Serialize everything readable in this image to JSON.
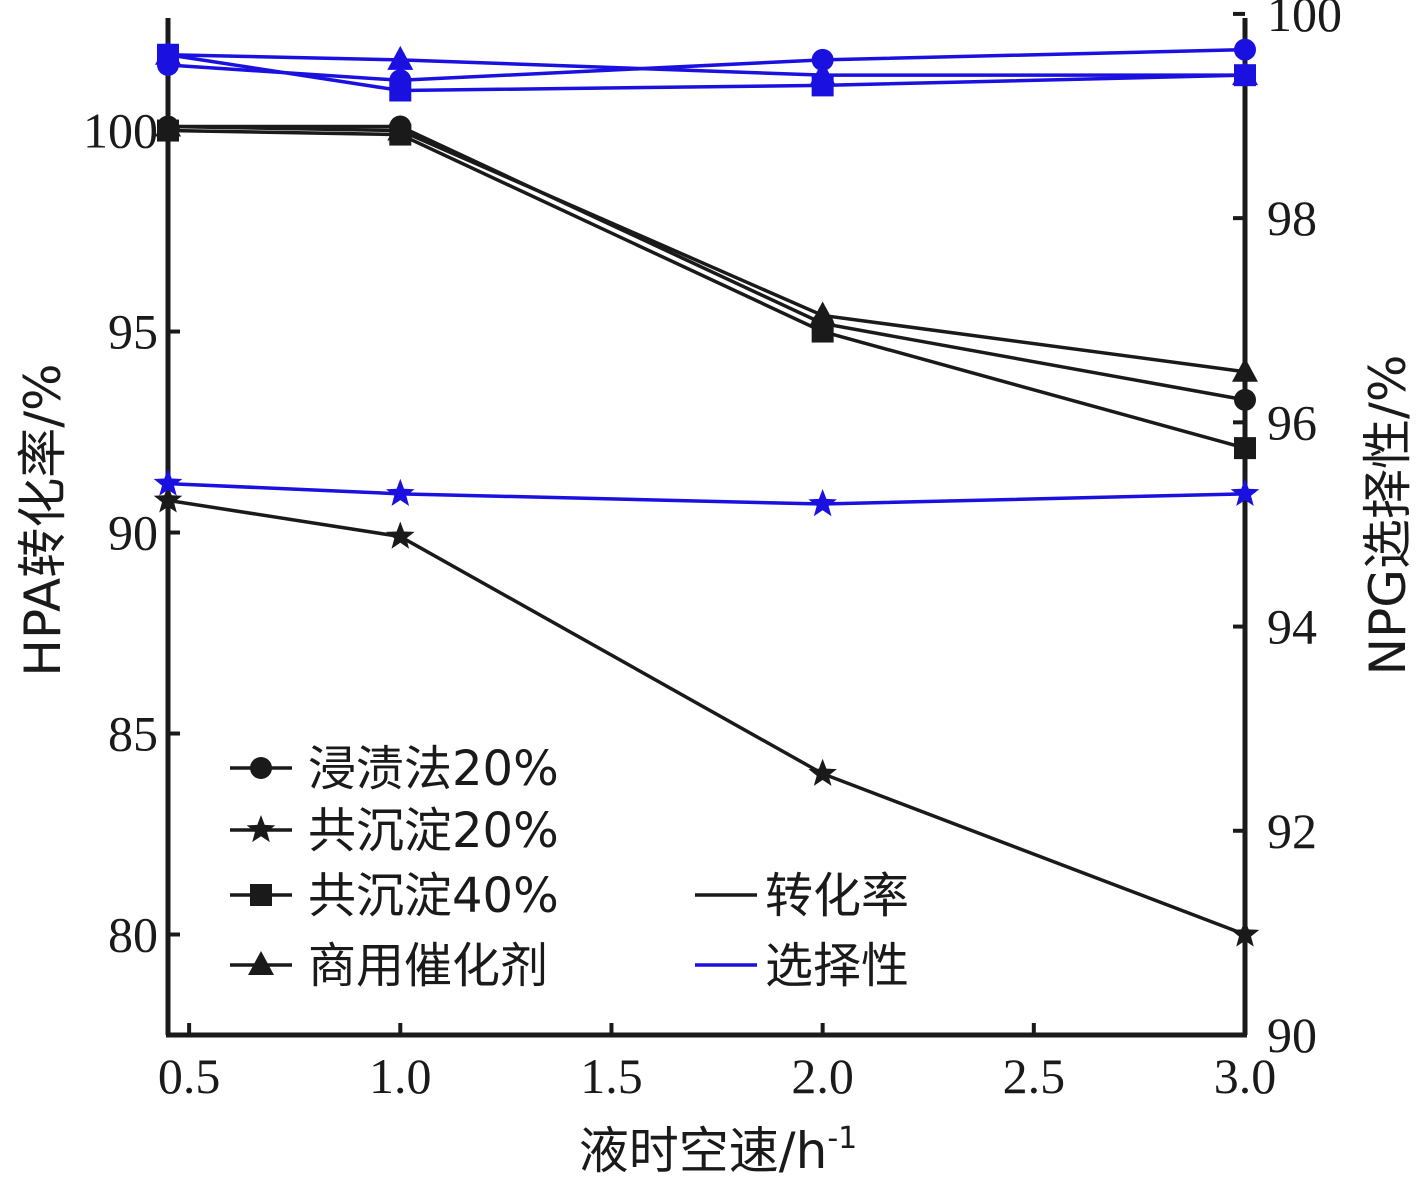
{
  "chart_data": {
    "type": "line",
    "xlabel": "液时空速/h",
    "xlabel_sup": "-1",
    "ylabel_left": "HPA转化率/%",
    "ylabel_right": "NPG选择性/%",
    "x_ticks": [
      "0.5",
      "1.0",
      "1.5",
      "2.0",
      "2.5",
      "3.0"
    ],
    "y_left_ticks": [
      "80",
      "85",
      "90",
      "95",
      "100"
    ],
    "y_right_ticks": [
      "90",
      "92",
      "94",
      "96",
      "98",
      "100"
    ],
    "xlim": [
      0.45,
      3.0
    ],
    "ylim_left": [
      77.5,
      102.8
    ],
    "ylim_right": [
      90,
      99.96
    ],
    "x": [
      0.45,
      1.0,
      2.0,
      3.0
    ],
    "grid": false,
    "legend_position": "bottom-left",
    "colors": {
      "conversion": "#1a1a1a",
      "selectivity": "#1a10e0"
    },
    "conversion_series": [
      {
        "name": "浸渍法20%",
        "marker": "circle",
        "axis": "left",
        "values": [
          100.1,
          100.1,
          95.2,
          93.3
        ]
      },
      {
        "name": "共沉淀20%",
        "marker": "star",
        "axis": "left",
        "values": [
          90.8,
          89.9,
          84.0,
          80.0
        ]
      },
      {
        "name": "共沉淀40%",
        "marker": "square",
        "axis": "left",
        "values": [
          100.0,
          99.9,
          95.0,
          92.1
        ]
      },
      {
        "name": "商用催化剂",
        "marker": "triangle",
        "axis": "left",
        "values": [
          100.1,
          100.0,
          95.4,
          94.0
        ]
      }
    ],
    "selectivity_series": [
      {
        "name": "浸渍法20%",
        "marker": "circle",
        "axis": "right",
        "values": [
          99.5,
          99.35,
          99.55,
          99.65
        ]
      },
      {
        "name": "共沉淀20%",
        "marker": "star",
        "axis": "right",
        "values": [
          95.4,
          95.3,
          95.2,
          95.3
        ]
      },
      {
        "name": "共沉淀40%",
        "marker": "square",
        "axis": "right",
        "values": [
          99.6,
          99.25,
          99.3,
          99.4
        ]
      },
      {
        "name": "商用催化剂",
        "marker": "triangle",
        "axis": "right",
        "values": [
          99.6,
          99.55,
          99.4,
          99.4
        ]
      }
    ],
    "legend": {
      "series_labels": [
        "浸渍法20%",
        "共沉淀20%",
        "共沉淀40%",
        "商用催化剂"
      ],
      "series_markers": [
        "circle",
        "star",
        "square",
        "triangle"
      ],
      "line_labels": [
        "转化率",
        "选择性"
      ]
    }
  }
}
